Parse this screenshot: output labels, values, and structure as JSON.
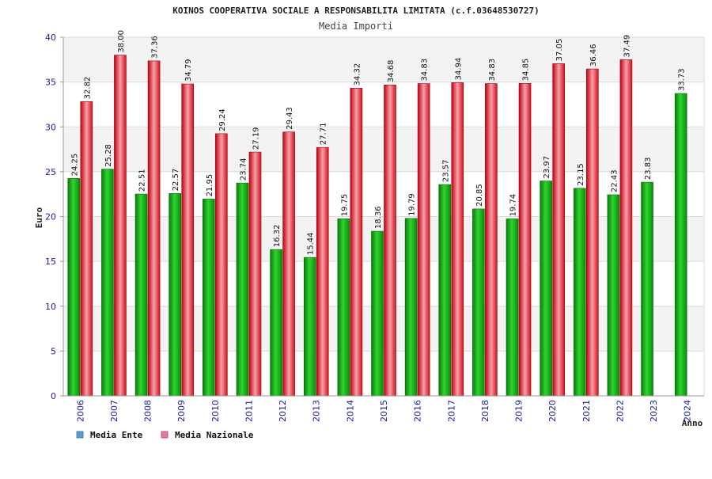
{
  "chart_data": {
    "type": "bar",
    "title": "KOINOS COOPERATIVA SOCIALE A RESPONSABILITA LIMITATA (c.f.03648530727)",
    "subtitle": "Media Importi",
    "xlabel": "Anno",
    "ylabel": "Euro",
    "ylim": [
      0,
      40
    ],
    "yticks": [
      0,
      5,
      10,
      15,
      20,
      25,
      30,
      35,
      40
    ],
    "grid": true,
    "legend_position": "bottom-left",
    "categories": [
      "2006",
      "2007",
      "2008",
      "2009",
      "2010",
      "2011",
      "2012",
      "2013",
      "2014",
      "2015",
      "2016",
      "2017",
      "2018",
      "2019",
      "2020",
      "2021",
      "2022",
      "2023",
      "2024"
    ],
    "series": [
      {
        "name": "Media Ente",
        "legend_color": "#5b9bd5",
        "bar_color": "#12b012",
        "values": [
          24.25,
          25.28,
          22.51,
          22.57,
          21.95,
          23.74,
          16.32,
          15.44,
          19.75,
          18.36,
          19.79,
          23.57,
          20.85,
          19.74,
          23.97,
          23.15,
          22.43,
          23.83,
          33.73
        ],
        "labels": [
          "24.25",
          "25.28",
          "22.51",
          "22.57",
          "21.95",
          "23.74",
          "16.32",
          "15.44",
          "19.75",
          "18.36",
          "19.79",
          "23.57",
          "20.85",
          "19.74",
          "23.97",
          "23.15",
          "22.43",
          "23.83",
          "33.73"
        ]
      },
      {
        "name": "Media Nazionale",
        "legend_color": "#e87aa0",
        "bar_color": "#e8202a",
        "values": [
          32.82,
          38.0,
          37.36,
          34.79,
          29.24,
          27.19,
          29.43,
          27.71,
          34.32,
          34.68,
          34.83,
          34.94,
          34.83,
          34.85,
          37.05,
          36.46,
          37.49,
          null,
          null
        ],
        "labels": [
          "32.82",
          "38.00",
          "37.36",
          "34.79",
          "29.24",
          "27.19",
          "29.43",
          "27.71",
          "34.32",
          "34.68",
          "34.83",
          "34.94",
          "34.83",
          "34.85",
          "37.05",
          "36.46",
          "37.49",
          "",
          ""
        ]
      }
    ]
  }
}
